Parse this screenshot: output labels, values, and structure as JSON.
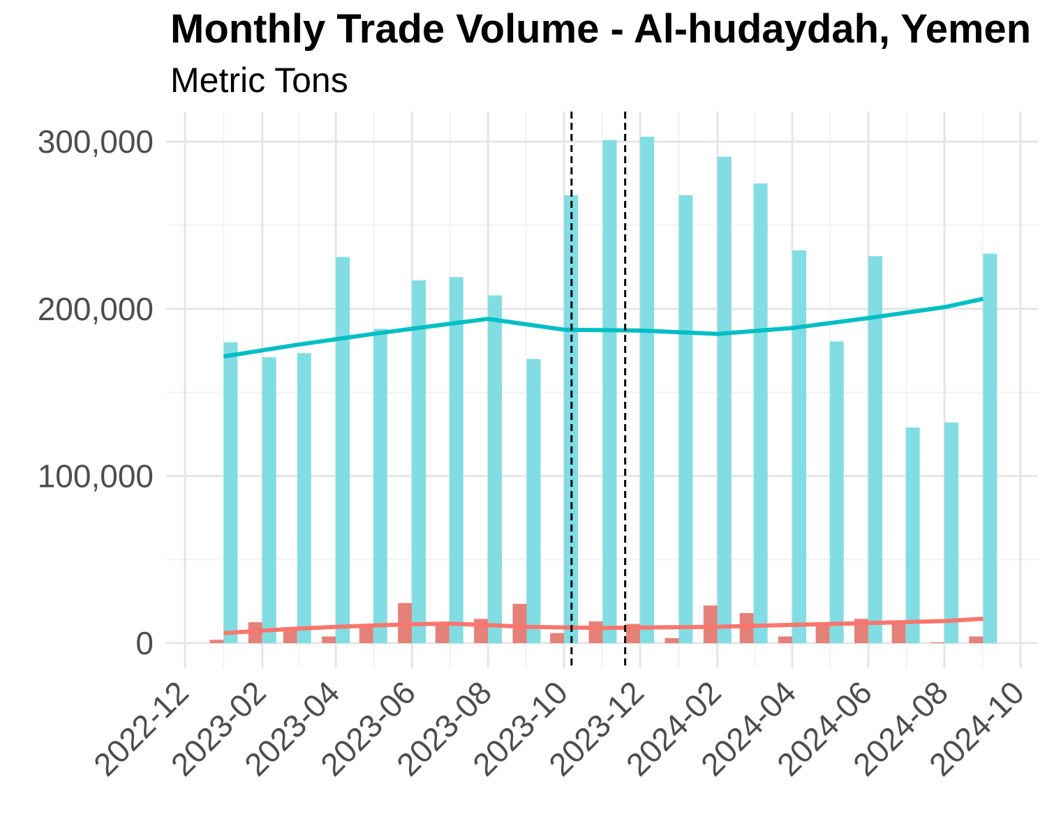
{
  "chart_data": {
    "type": "bar",
    "title": "Monthly Trade Volume - Al-hudaydah, Yemen",
    "subtitle": "Metric Tons",
    "xlabel": "",
    "ylabel": "",
    "ylim": [
      -15000,
      318000
    ],
    "xlim": [
      "2022-12",
      "2024-10"
    ],
    "x_ticks": [
      "2022-12",
      "2023-02",
      "2023-04",
      "2023-06",
      "2023-08",
      "2023-10",
      "2023-12",
      "2024-02",
      "2024-04",
      "2024-06",
      "2024-08",
      "2024-10"
    ],
    "y_ticks": [
      0,
      100000,
      200000,
      300000
    ],
    "y_tick_labels": [
      "0",
      "100,000",
      "200,000",
      "300,000"
    ],
    "grid": true,
    "legend": "none",
    "months": [
      "2023-01",
      "2023-02",
      "2023-03",
      "2023-04",
      "2023-05",
      "2023-06",
      "2023-07",
      "2023-08",
      "2023-09",
      "2023-10",
      "2023-11",
      "2023-12",
      "2024-01",
      "2024-02",
      "2024-03",
      "2024-04",
      "2024-05",
      "2024-06",
      "2024-07",
      "2024-08",
      "2024-09"
    ],
    "series": [
      {
        "color": "#F8766D",
        "bar_color": "#E48179",
        "values": [
          2000,
          12500,
          9000,
          4000,
          10000,
          24000,
          11000,
          14500,
          23500,
          6000,
          13000,
          11500,
          3000,
          22500,
          18000,
          4000,
          12000,
          14500,
          13000,
          500,
          4000
        ],
        "trend": [
          6000,
          7500,
          8700,
          9700,
          10600,
          11300,
          11700,
          10800,
          9700,
          9400,
          9100,
          9800,
          10900,
          12000,
          13200,
          14600
        ]
      },
      {
        "color": "#00BFC4",
        "bar_color": "#81DDE3",
        "values": [
          180000,
          171000,
          173500,
          231000,
          188000,
          217000,
          219000,
          208000,
          170000,
          268000,
          301000,
          303000,
          268000,
          291000,
          275000,
          235000,
          180500,
          231500,
          129000,
          132000,
          233000
        ],
        "trend": [
          171500,
          178500,
          185000,
          191000,
          194000,
          187500,
          187000,
          185000,
          188500,
          194500,
          201000,
          206000
        ]
      }
    ],
    "trend_months": {
      "series_0": [
        "2023-01",
        "2023-02",
        "2023-03",
        "2023-04",
        "2023-05",
        "2023-06",
        "2023-07",
        "2023-08",
        "2023-09",
        "2023-10",
        "2023-11",
        "2024-02",
        "2024-04",
        "2024-06",
        "2024-08",
        "2024-09"
      ],
      "series_1": [
        "2023-01",
        "2023-03",
        "2023-05",
        "2023-07",
        "2023-08",
        "2023-10",
        "2023-12",
        "2024-02",
        "2024-04",
        "2024-06",
        "2024-08",
        "2024-09"
      ]
    },
    "reference_lines": [
      "2023-10-07",
      "2023-11-19"
    ]
  }
}
